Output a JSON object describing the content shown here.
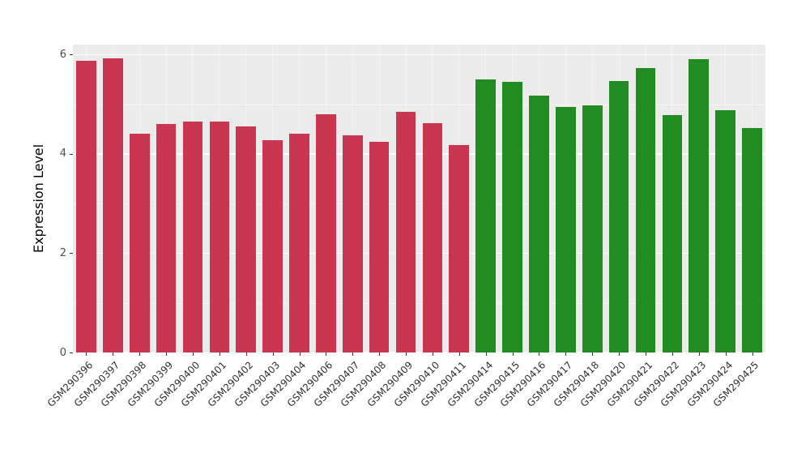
{
  "chart_data": {
    "type": "bar",
    "title": "",
    "xlabel": "",
    "ylabel": "Expression Level",
    "ylim": [
      0,
      6.2
    ],
    "yticks": [
      0,
      2,
      4,
      6
    ],
    "yticks_minor": [
      1,
      3,
      5
    ],
    "grid": true,
    "legend_position": "none",
    "panel_background": "#EBEBEB",
    "group_colors": {
      "group1": "#C8374F",
      "group2": "#228B22"
    },
    "categories": [
      "GSM290396",
      "GSM290397",
      "GSM290398",
      "GSM290399",
      "GSM290400",
      "GSM290401",
      "GSM290402",
      "GSM290403",
      "GSM290404",
      "GSM290406",
      "GSM290407",
      "GSM290408",
      "GSM290409",
      "GSM290410",
      "GSM290411",
      "GSM290414",
      "GSM290415",
      "GSM290416",
      "GSM290417",
      "GSM290418",
      "GSM290420",
      "GSM290421",
      "GSM290422",
      "GSM290423",
      "GSM290424",
      "GSM290425"
    ],
    "values": [
      5.87,
      5.93,
      4.4,
      4.6,
      4.65,
      4.65,
      4.55,
      4.28,
      4.41,
      4.8,
      4.38,
      4.24,
      4.84,
      4.62,
      4.18,
      5.5,
      5.45,
      5.17,
      4.95,
      4.97,
      5.47,
      5.72,
      4.78,
      5.9,
      4.88,
      4.52
    ],
    "groups": [
      "group1",
      "group1",
      "group1",
      "group1",
      "group1",
      "group1",
      "group1",
      "group1",
      "group1",
      "group1",
      "group1",
      "group1",
      "group1",
      "group1",
      "group1",
      "group2",
      "group2",
      "group2",
      "group2",
      "group2",
      "group2",
      "group2",
      "group2",
      "group2",
      "group2",
      "group2"
    ]
  }
}
